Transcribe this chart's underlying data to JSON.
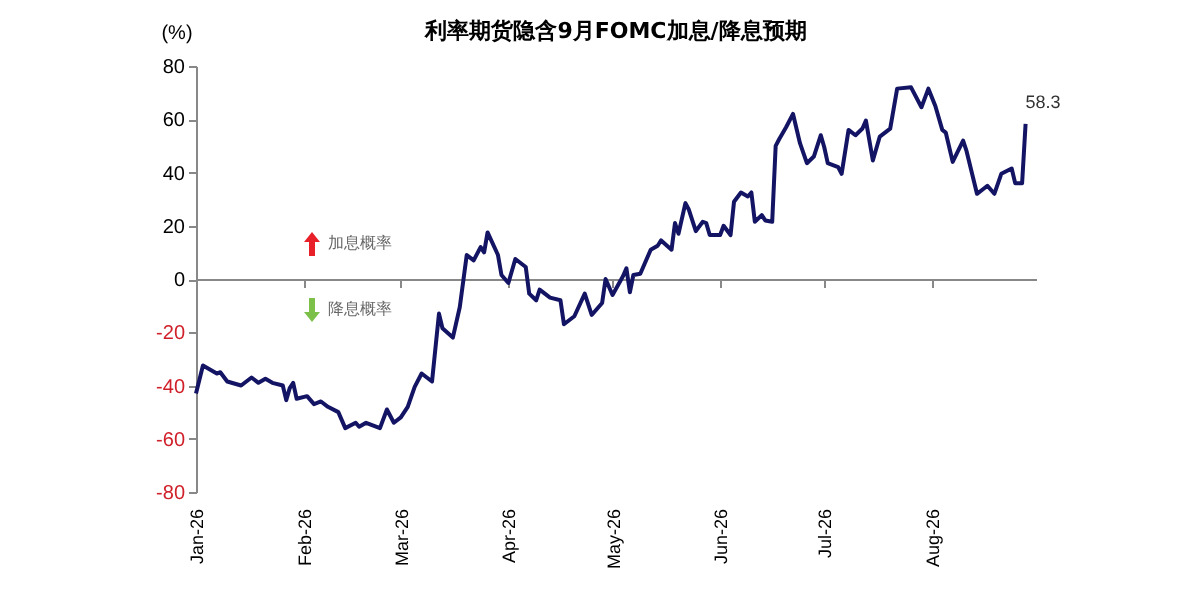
{
  "chart_data": {
    "type": "line",
    "title": "利率期货隐含9月FOMC加息/降息预期",
    "ylabel": "(%)",
    "annotations": [
      {
        "text": "58.3",
        "x": "2026-08-28",
        "y": 58.3
      },
      "加息概率",
      "降息概率"
    ],
    "x": [
      "2026-01-01",
      "2026-01-03",
      "2026-01-05",
      "2026-01-07",
      "2026-01-08",
      "2026-01-10",
      "2026-01-14",
      "2026-01-17",
      "2026-01-19",
      "2026-01-21",
      "2026-01-23",
      "2026-01-26",
      "2026-01-27",
      "2026-01-28",
      "2026-01-29",
      "2026-01-30",
      "2026-02-02",
      "2026-02-04",
      "2026-02-06",
      "2026-02-08",
      "2026-02-11",
      "2026-02-13",
      "2026-02-16",
      "2026-02-17",
      "2026-02-19",
      "2026-02-23",
      "2026-02-25",
      "2026-02-27",
      "2026-03-01",
      "2026-03-03",
      "2026-03-05",
      "2026-03-07",
      "2026-03-10",
      "2026-03-12",
      "2026-03-13",
      "2026-03-16",
      "2026-03-18",
      "2026-03-20",
      "2026-03-22",
      "2026-03-24",
      "2026-03-25",
      "2026-03-26",
      "2026-03-29",
      "2026-03-30",
      "2026-04-01",
      "2026-04-03",
      "2026-04-06",
      "2026-04-07",
      "2026-04-09",
      "2026-04-10",
      "2026-04-13",
      "2026-04-16",
      "2026-04-17",
      "2026-04-20",
      "2026-04-23",
      "2026-04-25",
      "2026-04-28",
      "2026-04-29",
      "2026-05-01",
      "2026-05-04",
      "2026-05-05",
      "2026-05-06",
      "2026-05-07",
      "2026-05-09",
      "2026-05-12",
      "2026-05-14",
      "2026-05-15",
      "2026-05-18",
      "2026-05-19",
      "2026-05-20",
      "2026-05-22",
      "2026-05-23",
      "2026-05-25",
      "2026-05-27",
      "2026-05-28",
      "2026-05-29",
      "2026-06-01",
      "2026-06-02",
      "2026-06-04",
      "2026-06-05",
      "2026-06-07",
      "2026-06-09",
      "2026-06-10",
      "2026-06-11",
      "2026-06-13",
      "2026-06-14",
      "2026-06-16",
      "2026-06-17",
      "2026-06-18",
      "2026-06-20",
      "2026-06-22",
      "2026-06-24",
      "2026-06-26",
      "2026-06-28",
      "2026-06-30",
      "2026-07-01",
      "2026-07-02",
      "2026-07-05",
      "2026-07-06",
      "2026-07-08",
      "2026-07-10",
      "2026-07-12",
      "2026-07-13",
      "2026-07-15",
      "2026-07-17",
      "2026-07-20",
      "2026-07-22",
      "2026-07-26",
      "2026-07-29",
      "2026-07-31",
      "2026-08-02",
      "2026-08-04",
      "2026-08-05",
      "2026-08-07",
      "2026-08-10",
      "2026-08-11",
      "2026-08-14",
      "2026-08-16",
      "2026-08-17",
      "2026-08-19",
      "2026-08-21",
      "2026-08-24",
      "2026-08-25",
      "2026-08-27",
      "2026-08-28"
    ],
    "values": [
      -43,
      -32.5,
      -34,
      -35.5,
      -35,
      -38.5,
      -40,
      -37,
      -39,
      -37.5,
      -39,
      -40,
      -45.5,
      -41,
      -39,
      -45,
      -44,
      -47,
      -46,
      -48,
      -50,
      -56,
      -54,
      -55.5,
      -54,
      -56,
      -49,
      -54,
      -52,
      -48,
      -40.5,
      -35.5,
      -38.5,
      -13,
      -18.5,
      -22,
      -10.5,
      9,
      7,
      12,
      10,
      17.5,
      9,
      1.5,
      -1.5,
      7.5,
      4.5,
      -5.5,
      -8,
      -4,
      -7,
      -8,
      -17,
      -14,
      -5.5,
      -13.5,
      -9,
      0,
      -6,
      1,
      4,
      -5,
      1.5,
      2,
      11,
      12.5,
      14.5,
      11,
      21,
      17,
      28.5,
      26,
      18,
      21.5,
      21,
      16.5,
      16.5,
      20,
      16.5,
      29,
      32.5,
      31,
      32.5,
      21.5,
      24,
      22,
      21.5,
      50,
      52.5,
      57,
      62,
      51,
      43.5,
      46,
      54,
      49.5,
      43.5,
      42,
      39.5,
      56,
      54,
      56.5,
      59.5,
      44.5,
      53.5,
      56.5,
      71.5,
      72,
      64.5,
      71.5,
      65,
      56,
      55,
      44,
      52,
      48,
      32,
      34,
      35,
      32,
      39.5,
      41.5,
      36,
      36,
      58.3
    ],
    "color": "#141464",
    "xlim": [
      "2026-01-01",
      "2026-08-31"
    ],
    "xticks": [
      {
        "value": "2026-01-01",
        "label": "Jan-26"
      },
      {
        "value": "2026-02-01",
        "label": "Feb-26"
      },
      {
        "value": "2026-03-01",
        "label": "Mar-26"
      },
      {
        "value": "2026-04-01",
        "label": "Apr-26"
      },
      {
        "value": "2026-05-01",
        "label": "May-26"
      },
      {
        "value": "2026-06-01",
        "label": "Jun-26"
      },
      {
        "value": "2026-07-01",
        "label": "Jul-26"
      },
      {
        "value": "2026-08-01",
        "label": "Aug-26"
      }
    ],
    "ylim": [
      -80,
      80
    ],
    "yticks": [
      -80,
      -60,
      -40,
      -20,
      0,
      20,
      40,
      60,
      80
    ],
    "line_style": "solid",
    "marker": "none"
  }
}
